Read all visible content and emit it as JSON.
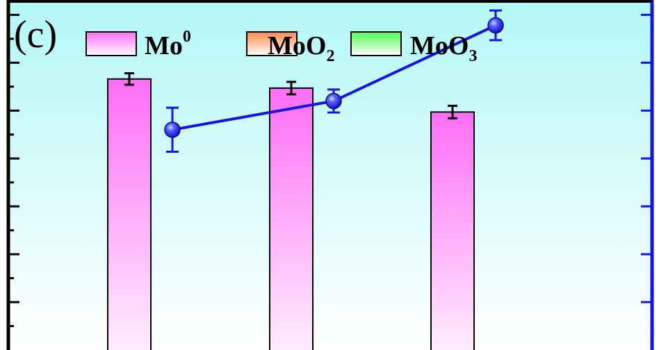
{
  "chart_data": {
    "type": "bar",
    "panel_label": "(c)",
    "title": "",
    "xlabel": "",
    "ylabel": "",
    "categories": [
      "",
      "",
      ""
    ],
    "legend": {
      "placement": "top",
      "entries": [
        {
          "name": "Mo",
          "sup": "0",
          "sub": "",
          "color": "#ff6df7"
        },
        {
          "name": "MoO",
          "sup": "",
          "sub": "2",
          "color": "#ff8a4c"
        },
        {
          "name": "MoO",
          "sup": "",
          "sub": "3",
          "color": "#4cff4c"
        }
      ]
    },
    "series": [
      {
        "name": "Mo0",
        "kind": "bar",
        "axis": "left",
        "values": [
          56.6,
          54.7,
          49.7
        ],
        "errors": [
          1.2,
          1.3,
          1.3
        ],
        "color": "#ff6df7"
      },
      {
        "name": "",
        "kind": "line",
        "axis": "right",
        "values": [
          46.0,
          52.0,
          67.8
        ],
        "errors": [
          4.6,
          2.4,
          3.1
        ],
        "color": "#1414e6"
      }
    ],
    "left_axis": {
      "ylim": [
        0,
        73.1
      ],
      "minor_tick": 5,
      "major_tick": 10
    },
    "right_axis": {
      "ylim": [
        0,
        73.1
      ],
      "major_tick": 10
    },
    "grid": false,
    "background_gradient": [
      "#b3f7f7",
      "#ffffff"
    ]
  }
}
